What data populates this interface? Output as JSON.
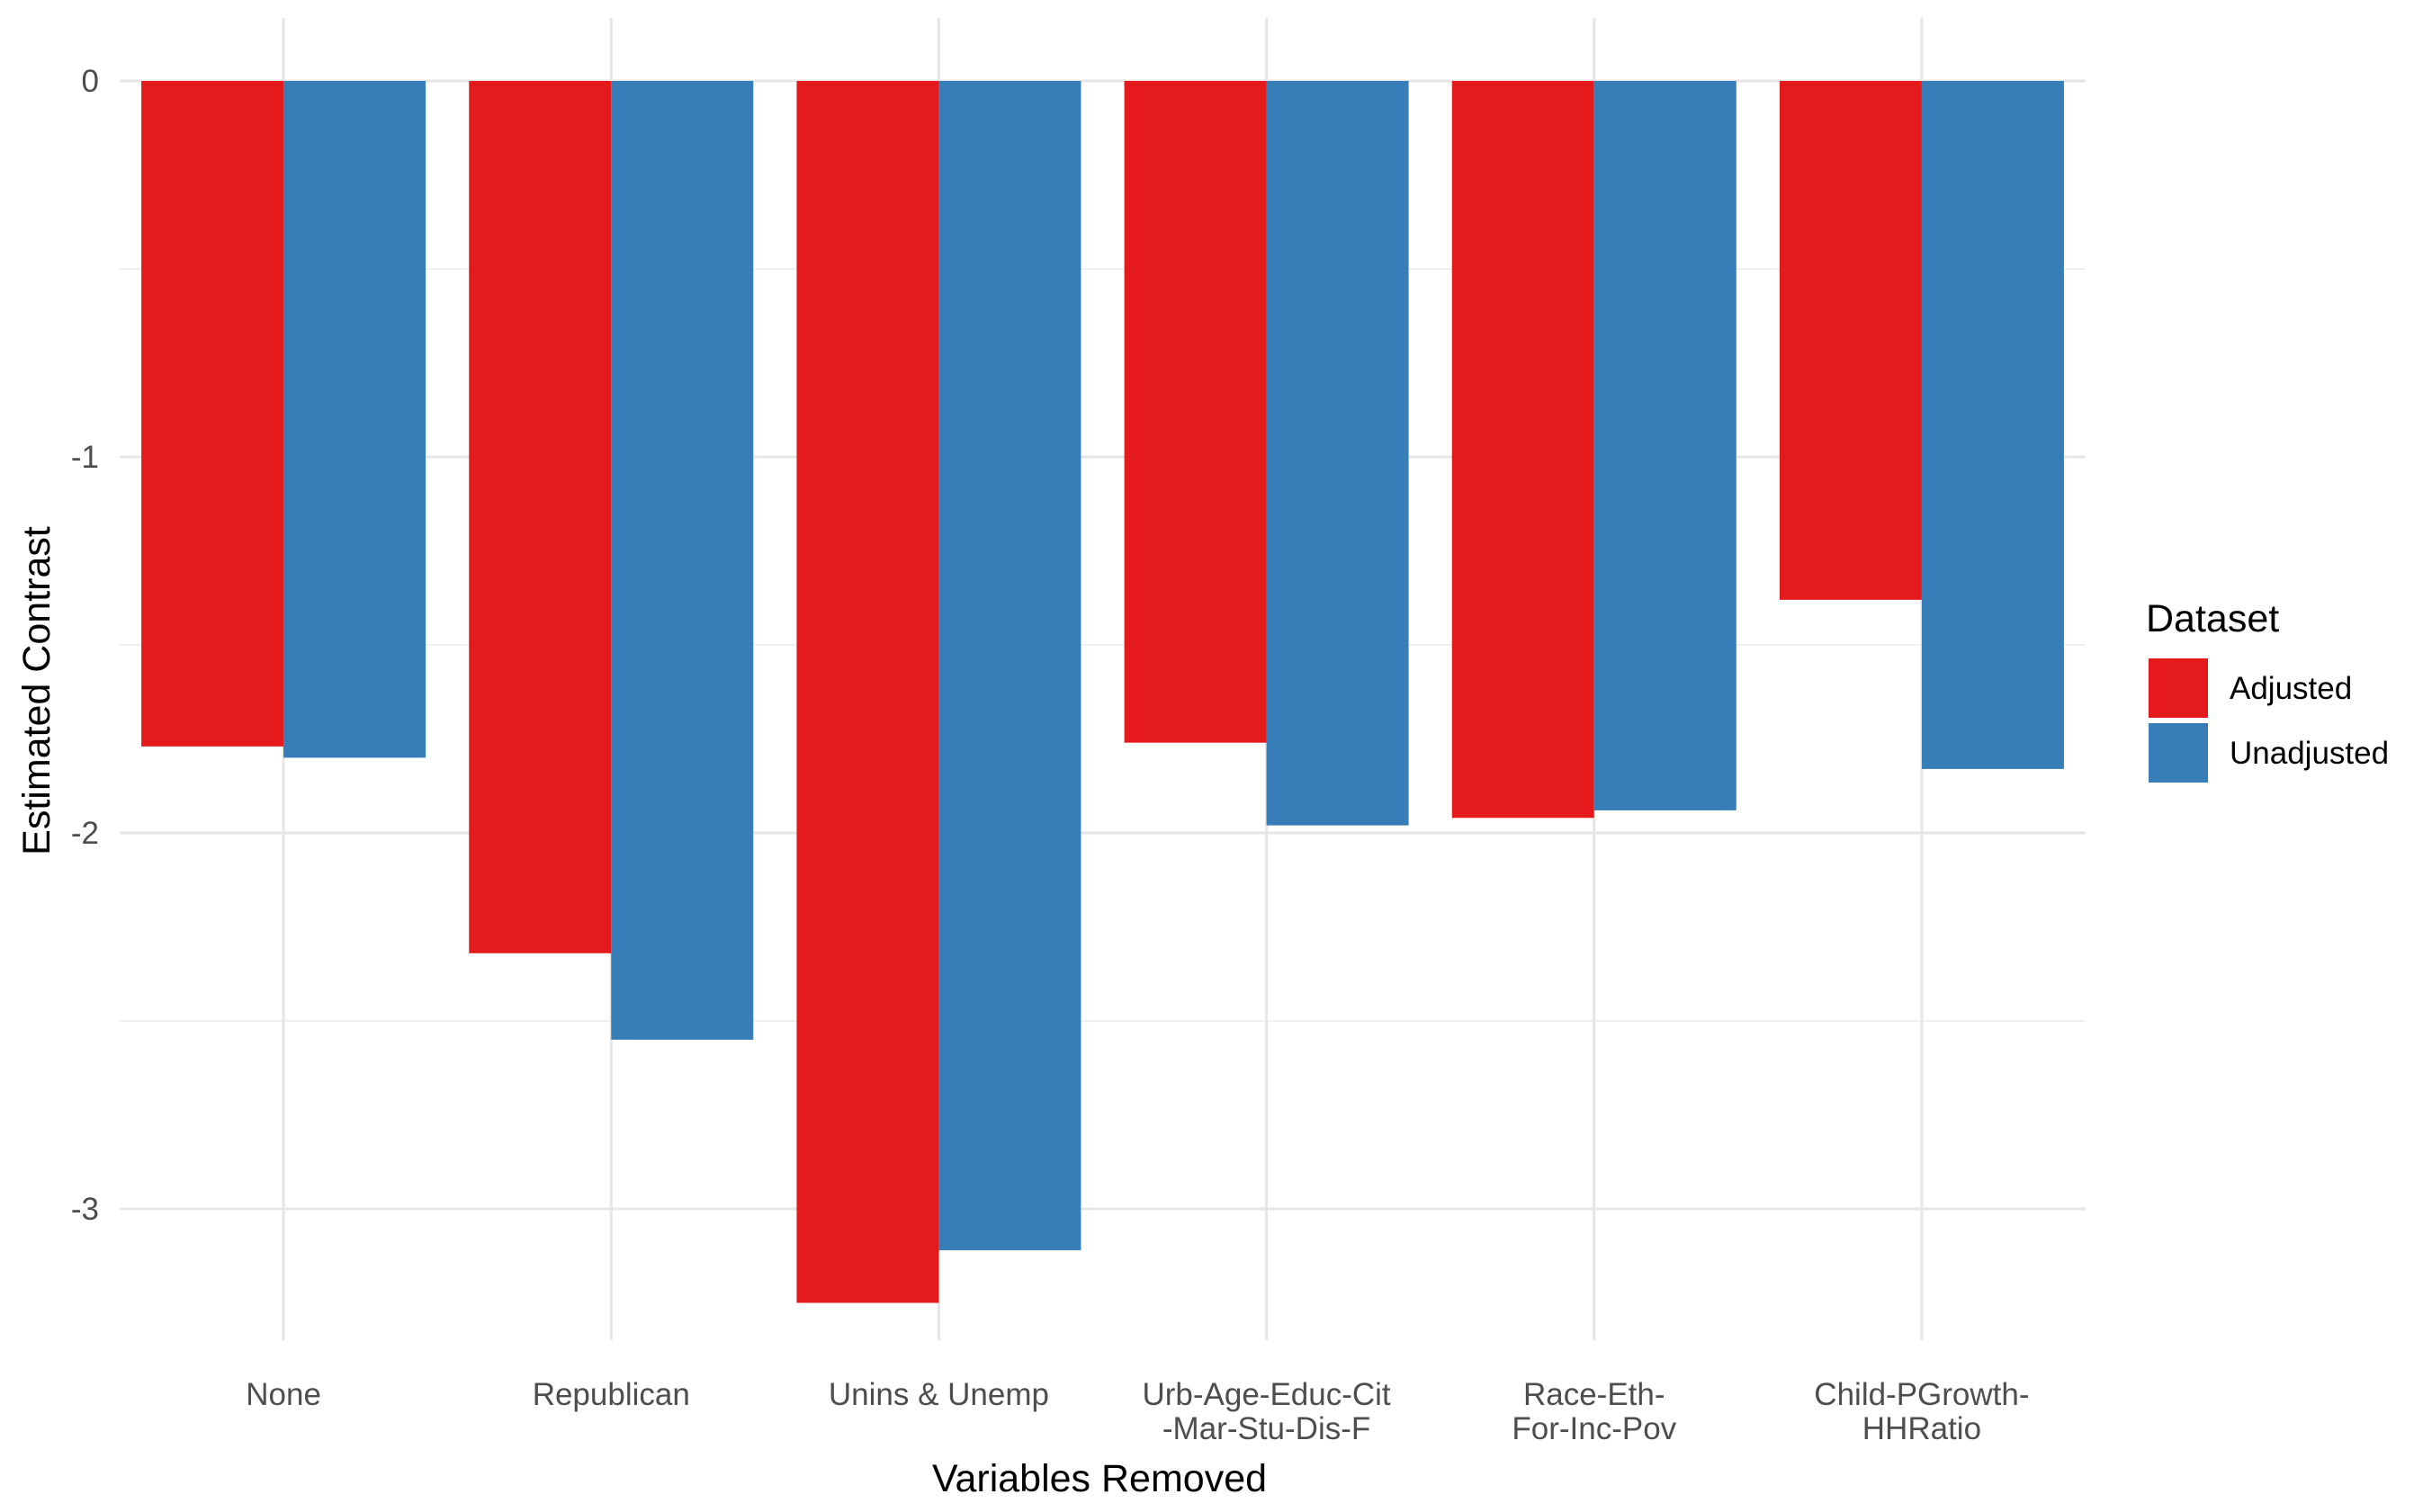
{
  "chart_data": {
    "type": "bar",
    "title": "",
    "xlabel": "Variables Removed",
    "ylabel": "Estimated Contrast",
    "categories": [
      [
        "None"
      ],
      [
        "Republican"
      ],
      [
        "Unins & Unemp"
      ],
      [
        "Urb-Age-Educ-Cit",
        "-Mar-Stu-Dis-F"
      ],
      [
        "Race-Eth-",
        "For-Inc-Pov"
      ],
      [
        "Child-PGrowth-",
        "HHRatio"
      ]
    ],
    "series": [
      {
        "name": "Adjusted",
        "color": "#E41A1C",
        "values": [
          -1.77,
          -2.32,
          -3.25,
          -1.76,
          -1.96,
          -1.38
        ]
      },
      {
        "name": "Unadjusted",
        "color": "#377EB8",
        "values": [
          -1.8,
          -2.55,
          -3.11,
          -1.98,
          -1.94,
          -1.83
        ]
      }
    ],
    "ylim": [
      -3.35,
      0.15
    ],
    "yticks": [
      0,
      -1,
      -2,
      -3
    ],
    "ytick_labels": [
      "0",
      "-1",
      "-2",
      "-3"
    ],
    "grid": true,
    "legend": {
      "title": "Dataset",
      "position": "right"
    }
  }
}
